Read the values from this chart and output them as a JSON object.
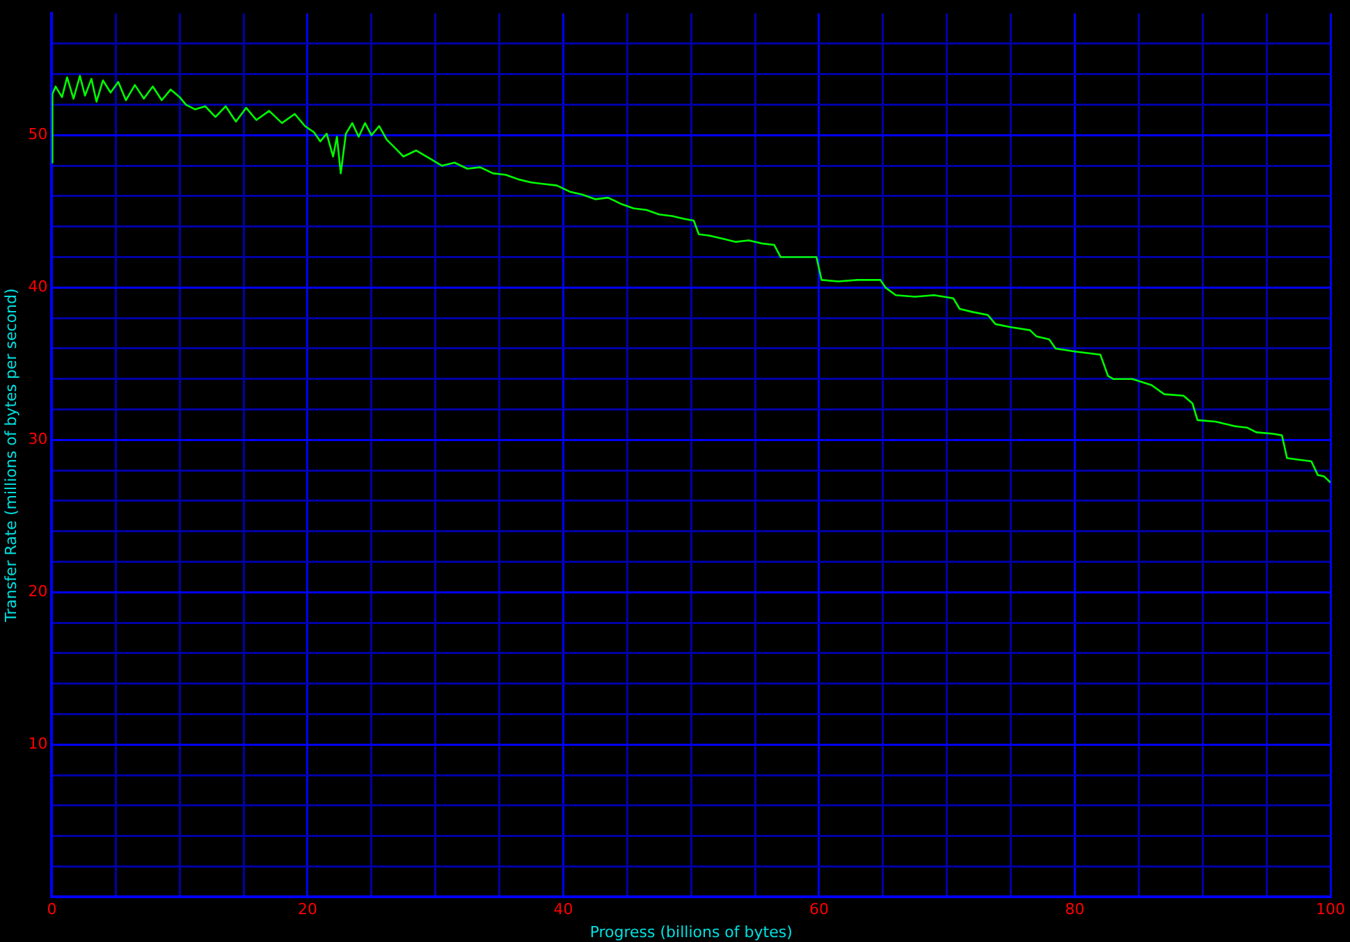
{
  "chart_data": {
    "type": "line",
    "xlabel": "Progress (billions of bytes)",
    "ylabel": "Transfer Rate (millions of bytes per second)",
    "xlim": [
      0,
      100
    ],
    "ylim": [
      0,
      58
    ],
    "xticks": [
      0,
      {
        "value": 5,
        "label": null
      },
      {
        "value": 10,
        "label": null
      },
      {
        "value": 15,
        "label": null
      },
      20,
      {
        "value": 25,
        "label": null
      },
      {
        "value": 30,
        "label": null
      },
      {
        "value": 35,
        "label": null
      },
      40,
      {
        "value": 45,
        "label": null
      },
      {
        "value": 50,
        "label": null
      },
      {
        "value": 55,
        "label": null
      },
      60,
      {
        "value": 65,
        "label": null
      },
      {
        "value": 70,
        "label": null
      },
      {
        "value": 75,
        "label": null
      },
      80,
      {
        "value": 85,
        "label": null
      },
      {
        "value": 90,
        "label": null
      },
      {
        "value": 95,
        "label": null
      },
      100
    ],
    "yticks": [
      {
        "value": 0,
        "label": null
      },
      {
        "value": 2,
        "label": null
      },
      {
        "value": 4,
        "label": null
      },
      {
        "value": 6,
        "label": null
      },
      {
        "value": 8,
        "label": null
      },
      10,
      {
        "value": 12,
        "label": null
      },
      {
        "value": 14,
        "label": null
      },
      {
        "value": 16,
        "label": null
      },
      {
        "value": 18,
        "label": null
      },
      20,
      {
        "value": 22,
        "label": null
      },
      {
        "value": 24,
        "label": null
      },
      {
        "value": 26,
        "label": null
      },
      {
        "value": 28,
        "label": null
      },
      30,
      {
        "value": 32,
        "label": null
      },
      {
        "value": 34,
        "label": null
      },
      {
        "value": 36,
        "label": null
      },
      {
        "value": 38,
        "label": null
      },
      40,
      {
        "value": 42,
        "label": null
      },
      {
        "value": 44,
        "label": null
      },
      {
        "value": 46,
        "label": null
      },
      {
        "value": 48,
        "label": null
      },
      50,
      {
        "value": 52,
        "label": null
      },
      {
        "value": 54,
        "label": null
      },
      {
        "value": 56,
        "label": null
      }
    ],
    "grid": true,
    "legend": false,
    "marker": "none",
    "line_style": "solid",
    "series": [
      {
        "color": "#00ff00",
        "x": [
          0,
          0.05,
          0.3,
          0.8,
          1.2,
          1.7,
          2.2,
          2.6,
          3.1,
          3.5,
          4,
          4.6,
          5.2,
          5.8,
          6.5,
          7.2,
          7.9,
          8.6,
          9.3,
          10,
          10.5,
          11.2,
          12,
          12.8,
          13.6,
          14.4,
          15.2,
          16,
          17,
          18,
          19,
          19.8,
          20.5,
          21,
          21.5,
          22,
          22.3,
          22.6,
          23,
          23.5,
          24,
          24.5,
          25,
          25.6,
          26.2,
          26.8,
          27.5,
          28.5,
          29.5,
          30.5,
          31.5,
          32.5,
          33.5,
          34.5,
          35.5,
          36.5,
          37.5,
          38.5,
          39.5,
          40.5,
          41.5,
          42.5,
          43.5,
          44.5,
          45.5,
          46.5,
          47.5,
          48.5,
          49.5,
          50.2,
          50.6,
          51.5,
          52.5,
          53.5,
          54.5,
          55.5,
          56.5,
          57,
          59.8,
          60.2,
          61.5,
          63,
          64.8,
          65.2,
          66,
          67.5,
          69,
          70.5,
          71,
          72,
          73.2,
          73.8,
          75,
          76.5,
          77,
          78,
          78.5,
          80,
          82,
          82.6,
          83,
          84.5,
          86,
          87,
          88.5,
          89.2,
          89.6,
          91,
          92.5,
          93.5,
          94.2,
          95.5,
          96.2,
          96.6,
          97.5,
          98.5,
          99,
          99.5,
          100
        ],
        "values": [
          48.2,
          52.7,
          53.2,
          52.5,
          53.8,
          52.4,
          53.9,
          52.6,
          53.7,
          52.2,
          53.6,
          52.8,
          53.5,
          52.3,
          53.3,
          52.4,
          53.2,
          52.3,
          53.0,
          52.5,
          52.0,
          51.7,
          51.9,
          51.2,
          51.9,
          50.9,
          51.8,
          51.0,
          51.6,
          50.8,
          51.4,
          50.6,
          50.2,
          49.6,
          50.1,
          48.6,
          49.9,
          47.5,
          50.1,
          50.8,
          49.9,
          50.8,
          50.0,
          50.6,
          49.7,
          49.2,
          48.6,
          49.0,
          48.5,
          48.0,
          48.2,
          47.8,
          47.9,
          47.5,
          47.4,
          47.1,
          46.9,
          46.8,
          46.7,
          46.3,
          46.1,
          45.8,
          45.9,
          45.5,
          45.2,
          45.1,
          44.8,
          44.7,
          44.5,
          44.4,
          43.5,
          43.4,
          43.2,
          43.0,
          43.1,
          42.9,
          42.8,
          42.0,
          42.0,
          40.5,
          40.4,
          40.5,
          40.5,
          40.0,
          39.5,
          39.4,
          39.5,
          39.3,
          38.6,
          38.4,
          38.2,
          37.6,
          37.4,
          37.2,
          36.8,
          36.6,
          36.0,
          35.8,
          35.6,
          34.2,
          34.0,
          34.0,
          33.6,
          33.0,
          32.9,
          32.4,
          31.3,
          31.2,
          30.9,
          30.8,
          30.5,
          30.4,
          30.3,
          28.8,
          28.7,
          28.6,
          27.7,
          27.6,
          27.2
        ]
      }
    ]
  }
}
